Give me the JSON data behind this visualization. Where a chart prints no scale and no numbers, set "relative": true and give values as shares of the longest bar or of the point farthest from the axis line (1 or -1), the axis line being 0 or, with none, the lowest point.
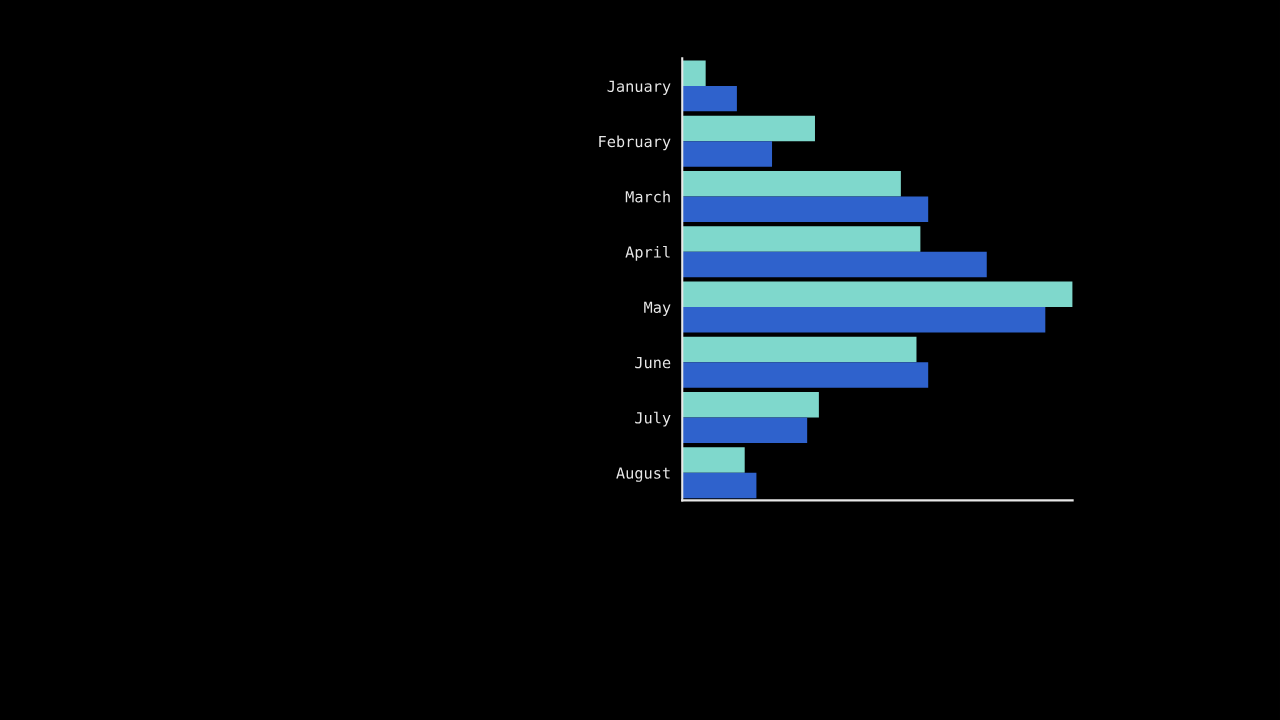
{
  "chart_data": {
    "type": "bar",
    "orientation": "horizontal",
    "relative": true,
    "categories": [
      "January",
      "February",
      "March",
      "April",
      "May",
      "June",
      "July",
      "August"
    ],
    "series": [
      {
        "color": "#7fd8cc",
        "values": [
          0.06,
          0.34,
          0.56,
          0.61,
          1,
          0.6,
          0.35,
          0.16
        ]
      },
      {
        "color": "#2f62cc",
        "values": [
          0.14,
          0.23,
          0.63,
          0.78,
          0.93,
          0.63,
          0.32,
          0.19
        ]
      }
    ]
  }
}
